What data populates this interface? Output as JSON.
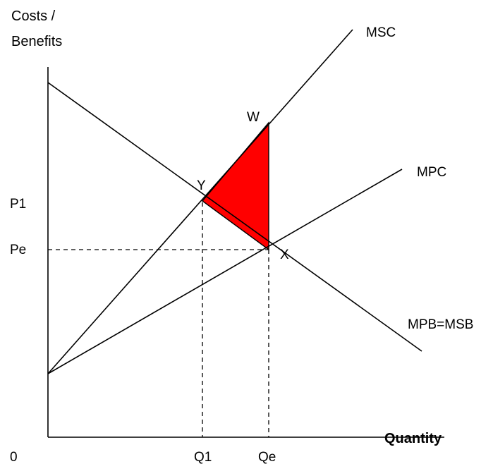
{
  "y_axis_label": [
    "Costs /",
    "Benefits"
  ],
  "x_axis_label": "Quantity",
  "origin_label": "0",
  "curves": {
    "msc": "MSC",
    "mpc": "MPC",
    "mpb_msb": "MPB=MSB"
  },
  "points": {
    "w": "W",
    "y": "Y",
    "x": "X"
  },
  "price_labels": {
    "p1": "P1",
    "pe": "Pe"
  },
  "quantity_labels": {
    "q1": "Q1",
    "qe": "Qe"
  },
  "colors": {
    "welfare_loss": "#ff0000",
    "lines": "#000000"
  }
}
